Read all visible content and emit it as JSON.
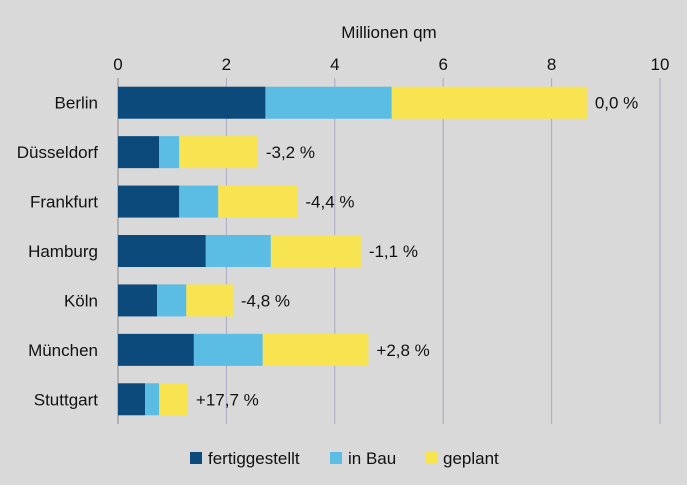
{
  "chart_data": {
    "type": "bar",
    "orientation": "horizontal",
    "stacked": true,
    "title": "",
    "xlabel": "Millionen qm",
    "ylabel": "",
    "xlim": [
      0,
      10
    ],
    "x_ticks": [
      "0",
      "2",
      "4",
      "6",
      "8",
      "10"
    ],
    "x_tick_values": [
      0,
      2,
      4,
      6,
      8,
      10
    ],
    "x_axis_position": "top",
    "grid": true,
    "legend_position": "bottom",
    "categories": [
      "Berlin",
      "Düsseldorf",
      "Frankfurt",
      "Hamburg",
      "Köln",
      "München",
      "Stuttgart"
    ],
    "series": [
      {
        "name": "fertiggestellt",
        "color": "#0b4a7a",
        "values": [
          2.72,
          0.76,
          1.13,
          1.62,
          0.72,
          1.4,
          0.5
        ]
      },
      {
        "name": "in Bau",
        "color": "#5bbde4",
        "values": [
          2.33,
          0.37,
          0.72,
          1.2,
          0.54,
          1.27,
          0.26
        ]
      },
      {
        "name": "geplant",
        "color": "#f8e451",
        "values": [
          3.6,
          1.45,
          1.46,
          1.66,
          0.86,
          1.95,
          0.53
        ]
      }
    ],
    "annotations": [
      "0,0 %",
      "-3,2 %",
      "-4,4 %",
      "-1,1 %",
      "-4,8 %",
      "+2,8 %",
      "+17,7 %"
    ]
  }
}
